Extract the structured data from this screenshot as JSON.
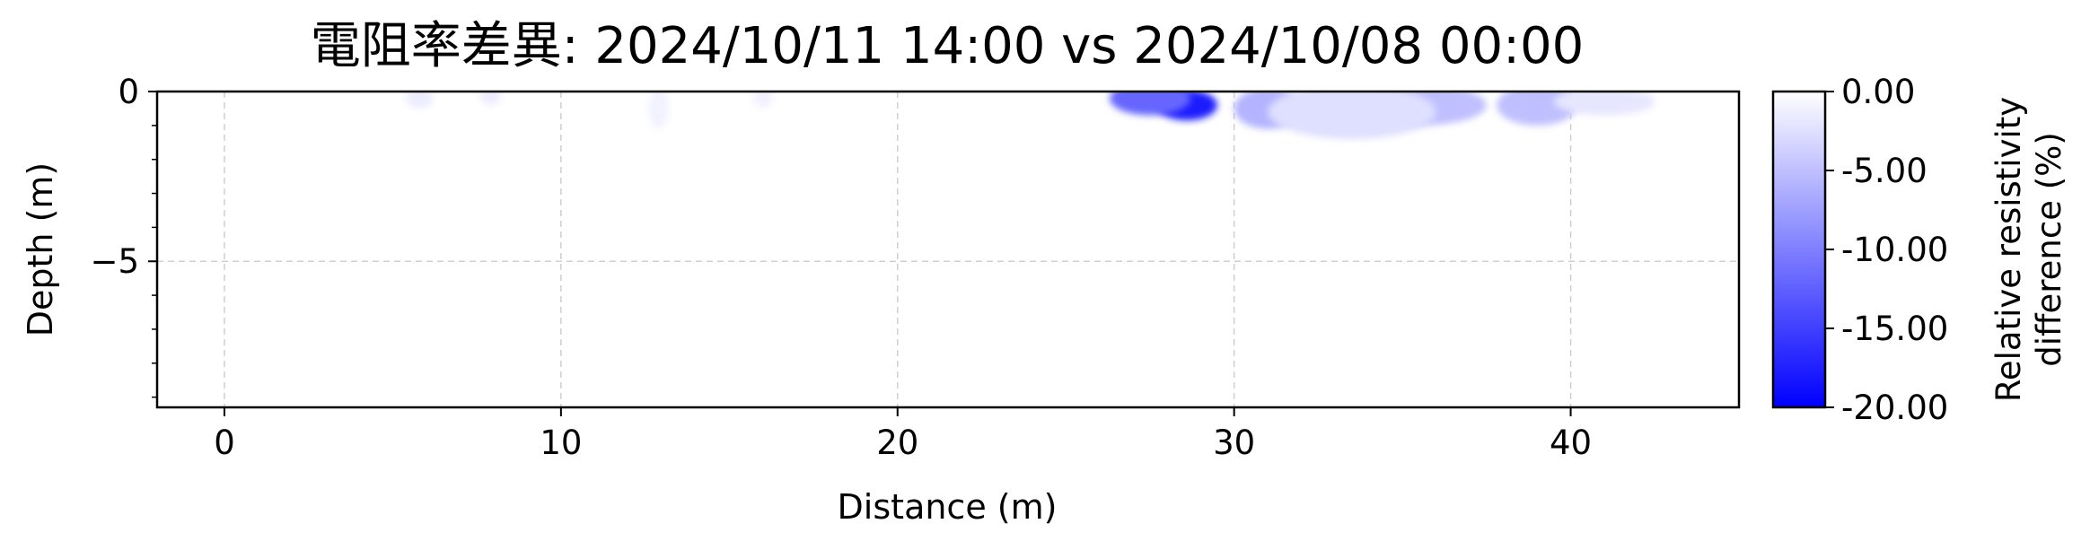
{
  "chart_data": {
    "type": "heatmap",
    "title": "電阻率差異: 2024/10/11 14:00 vs 2024/10/08 00:00",
    "xlabel": "Distance (m)",
    "ylabel": "Depth (m)",
    "xlim": [
      -2,
      45
    ],
    "ylim": [
      -9.3,
      0
    ],
    "x_ticks": [
      0,
      10,
      20,
      30,
      40
    ],
    "y_ticks": [
      0,
      -5
    ],
    "y_minor_ticks": [
      -1,
      -2,
      -3,
      -4,
      -6,
      -7,
      -8,
      -9
    ],
    "grid": true,
    "colorbar": {
      "label": "Relative resistivity\ndifference (%)",
      "ticks": [
        "0.00",
        "-5.00",
        "-10.00",
        "-15.00",
        "-20.00"
      ],
      "range": [
        -20,
        0
      ],
      "colors": [
        "#ffffff",
        "#0000ff"
      ]
    },
    "anomalies": [
      {
        "x": 28.6,
        "depth": -0.4,
        "value": -18,
        "rx": 0.9,
        "ry": 0.45
      },
      {
        "x": 27.5,
        "depth": -0.2,
        "value": -12,
        "rx": 1.2,
        "ry": 0.5
      },
      {
        "x": 31.0,
        "depth": -0.5,
        "value": -6,
        "rx": 1.0,
        "ry": 0.6
      },
      {
        "x": 35.5,
        "depth": -0.4,
        "value": -5,
        "rx": 2.0,
        "ry": 0.6
      },
      {
        "x": 39.0,
        "depth": -0.4,
        "value": -5,
        "rx": 1.2,
        "ry": 0.6
      },
      {
        "x": 41.0,
        "depth": -0.3,
        "value": -2,
        "rx": 1.5,
        "ry": 0.4
      },
      {
        "x": 33.5,
        "depth": -0.6,
        "value": -2.5,
        "rx": 2.5,
        "ry": 0.8
      },
      {
        "x": 5.8,
        "depth": -0.2,
        "value": -1.5,
        "rx": 0.4,
        "ry": 0.3
      },
      {
        "x": 7.9,
        "depth": -0.15,
        "value": -1.5,
        "rx": 0.3,
        "ry": 0.25
      },
      {
        "x": 12.9,
        "depth": -0.5,
        "value": -1,
        "rx": 0.3,
        "ry": 0.6
      },
      {
        "x": 16.0,
        "depth": -0.2,
        "value": -1,
        "rx": 0.3,
        "ry": 0.3
      }
    ]
  }
}
